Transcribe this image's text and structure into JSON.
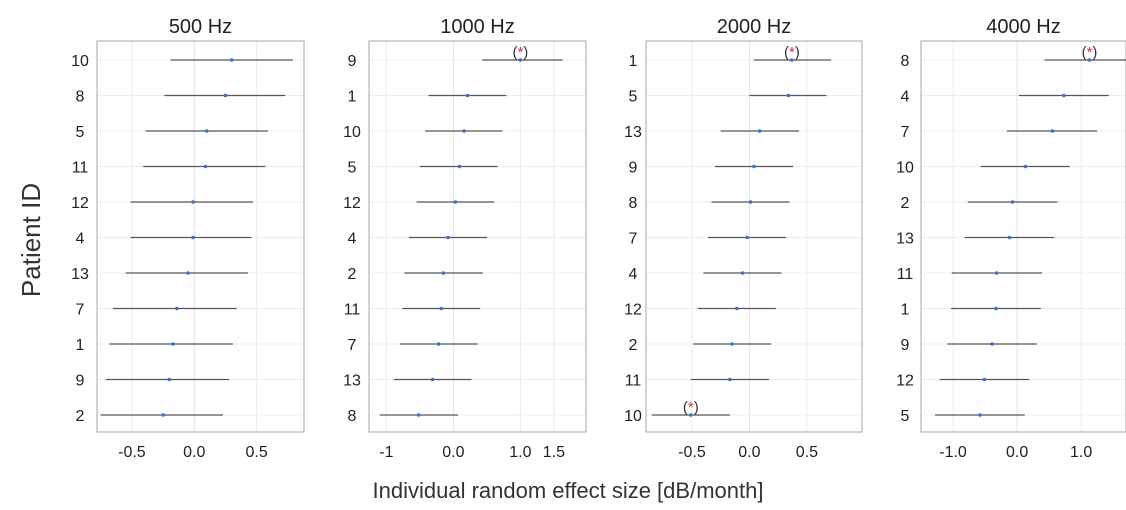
{
  "figure": {
    "ylabel": "Patient ID",
    "xlabel": "Individual random effect size [dB/month]",
    "colors": {
      "point": "#3b73c4",
      "interval": "#555555",
      "star": "#d0324a",
      "paren": "#333333",
      "grid": "#ececec",
      "frame": "#b5b5b5",
      "zero": "#e4e4e4"
    }
  },
  "chart_data": [
    {
      "type": "forest",
      "title": "500 Hz",
      "xlim": [
        -0.78,
        0.88
      ],
      "xticks": [
        -0.5,
        0.0,
        0.5
      ],
      "xtick_labels": [
        "-0.5",
        "0.0",
        "0.5"
      ],
      "rows": [
        {
          "id": "10",
          "estimate": 0.3,
          "lower": -0.19,
          "upper": 0.79,
          "flag": ""
        },
        {
          "id": "8",
          "estimate": 0.25,
          "lower": -0.24,
          "upper": 0.73,
          "flag": ""
        },
        {
          "id": "5",
          "estimate": 0.1,
          "lower": -0.39,
          "upper": 0.59,
          "flag": ""
        },
        {
          "id": "11",
          "estimate": 0.09,
          "lower": -0.41,
          "upper": 0.57,
          "flag": ""
        },
        {
          "id": "12",
          "estimate": -0.01,
          "lower": -0.51,
          "upper": 0.47,
          "flag": ""
        },
        {
          "id": "4",
          "estimate": -0.01,
          "lower": -0.51,
          "upper": 0.46,
          "flag": ""
        },
        {
          "id": "13",
          "estimate": -0.05,
          "lower": -0.55,
          "upper": 0.43,
          "flag": ""
        },
        {
          "id": "7",
          "estimate": -0.14,
          "lower": -0.65,
          "upper": 0.34,
          "flag": ""
        },
        {
          "id": "1",
          "estimate": -0.17,
          "lower": -0.68,
          "upper": 0.31,
          "flag": ""
        },
        {
          "id": "9",
          "estimate": -0.2,
          "lower": -0.71,
          "upper": 0.28,
          "flag": ""
        },
        {
          "id": "2",
          "estimate": -0.25,
          "lower": -0.75,
          "upper": 0.23,
          "flag": ""
        }
      ]
    },
    {
      "type": "forest",
      "title": "1000 Hz",
      "xlim": [
        -1.26,
        1.98
      ],
      "xticks": [
        -1,
        0,
        1,
        1.5
      ],
      "xtick_labels": [
        "-1",
        "0.0",
        "1.0",
        "1.5"
      ],
      "rows": [
        {
          "id": "9",
          "estimate": 1.0,
          "lower": 0.43,
          "upper": 1.63,
          "flag": "(*)"
        },
        {
          "id": "1",
          "estimate": 0.21,
          "lower": -0.37,
          "upper": 0.79,
          "flag": ""
        },
        {
          "id": "10",
          "estimate": 0.16,
          "lower": -0.42,
          "upper": 0.73,
          "flag": ""
        },
        {
          "id": "5",
          "estimate": 0.09,
          "lower": -0.5,
          "upper": 0.66,
          "flag": ""
        },
        {
          "id": "12",
          "estimate": 0.03,
          "lower": -0.55,
          "upper": 0.61,
          "flag": ""
        },
        {
          "id": "4",
          "estimate": -0.08,
          "lower": -0.66,
          "upper": 0.5,
          "flag": ""
        },
        {
          "id": "2",
          "estimate": -0.15,
          "lower": -0.73,
          "upper": 0.44,
          "flag": ""
        },
        {
          "id": "11",
          "estimate": -0.18,
          "lower": -0.76,
          "upper": 0.4,
          "flag": ""
        },
        {
          "id": "7",
          "estimate": -0.22,
          "lower": -0.8,
          "upper": 0.36,
          "flag": ""
        },
        {
          "id": "13",
          "estimate": -0.31,
          "lower": -0.89,
          "upper": 0.27,
          "flag": ""
        },
        {
          "id": "8",
          "estimate": -0.52,
          "lower": -1.1,
          "upper": 0.07,
          "flag": ""
        }
      ]
    },
    {
      "type": "forest",
      "title": "2000 Hz",
      "xlim": [
        -0.9,
        0.98
      ],
      "xticks": [
        -0.5,
        0.0,
        0.5
      ],
      "xtick_labels": [
        "-0.5",
        "0.0",
        "0.5"
      ],
      "rows": [
        {
          "id": "1",
          "estimate": 0.37,
          "lower": 0.04,
          "upper": 0.71,
          "flag": "(*)"
        },
        {
          "id": "5",
          "estimate": 0.34,
          "lower": 0.0,
          "upper": 0.67,
          "flag": ""
        },
        {
          "id": "13",
          "estimate": 0.09,
          "lower": -0.25,
          "upper": 0.43,
          "flag": ""
        },
        {
          "id": "9",
          "estimate": 0.04,
          "lower": -0.3,
          "upper": 0.38,
          "flag": ""
        },
        {
          "id": "8",
          "estimate": 0.01,
          "lower": -0.33,
          "upper": 0.35,
          "flag": ""
        },
        {
          "id": "7",
          "estimate": -0.02,
          "lower": -0.36,
          "upper": 0.32,
          "flag": ""
        },
        {
          "id": "4",
          "estimate": -0.06,
          "lower": -0.4,
          "upper": 0.28,
          "flag": ""
        },
        {
          "id": "12",
          "estimate": -0.11,
          "lower": -0.45,
          "upper": 0.23,
          "flag": ""
        },
        {
          "id": "2",
          "estimate": -0.15,
          "lower": -0.49,
          "upper": 0.19,
          "flag": ""
        },
        {
          "id": "11",
          "estimate": -0.17,
          "lower": -0.51,
          "upper": 0.17,
          "flag": ""
        },
        {
          "id": "10",
          "estimate": -0.51,
          "lower": -0.85,
          "upper": -0.17,
          "flag": "(*)"
        }
      ]
    },
    {
      "type": "forest",
      "title": "4000 Hz",
      "xlim": [
        -1.5,
        1.7
      ],
      "xticks": [
        -1.0,
        0.0,
        1.0
      ],
      "xtick_labels": [
        "-1.0",
        "0.0",
        "1.0"
      ],
      "rows": [
        {
          "id": "8",
          "estimate": 1.13,
          "lower": 0.43,
          "upper": 1.85,
          "flag": "(*)"
        },
        {
          "id": "4",
          "estimate": 0.73,
          "lower": 0.03,
          "upper": 1.43,
          "flag": ""
        },
        {
          "id": "7",
          "estimate": 0.55,
          "lower": -0.16,
          "upper": 1.25,
          "flag": ""
        },
        {
          "id": "10",
          "estimate": 0.13,
          "lower": -0.57,
          "upper": 0.82,
          "flag": ""
        },
        {
          "id": "2",
          "estimate": -0.07,
          "lower": -0.77,
          "upper": 0.63,
          "flag": ""
        },
        {
          "id": "13",
          "estimate": -0.12,
          "lower": -0.82,
          "upper": 0.58,
          "flag": ""
        },
        {
          "id": "11",
          "estimate": -0.32,
          "lower": -1.02,
          "upper": 0.39,
          "flag": ""
        },
        {
          "id": "1",
          "estimate": -0.33,
          "lower": -1.03,
          "upper": 0.37,
          "flag": ""
        },
        {
          "id": "9",
          "estimate": -0.39,
          "lower": -1.09,
          "upper": 0.31,
          "flag": ""
        },
        {
          "id": "12",
          "estimate": -0.51,
          "lower": -1.21,
          "upper": 0.19,
          "flag": ""
        },
        {
          "id": "5",
          "estimate": -0.58,
          "lower": -1.28,
          "upper": 0.12,
          "flag": ""
        }
      ]
    }
  ]
}
